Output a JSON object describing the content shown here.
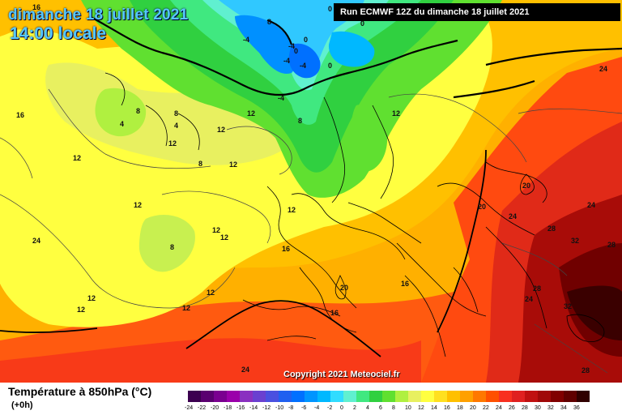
{
  "header": {
    "date": "dimanche 18 juillet 2021",
    "time": "14:00 locale",
    "run": "Run ECMWF 12Z du dimanche 18 juillet 2021"
  },
  "copyright": "Copyright 2021 Meteociel.fr",
  "legend": {
    "title": "Température à 850hPa (°C)",
    "subtitle": "(+0h)",
    "ticks": [
      "-24",
      "-22",
      "-20",
      "-18",
      "-16",
      "-14",
      "-12",
      "-10",
      "-8",
      "-6",
      "-4",
      "-2",
      "0",
      "2",
      "4",
      "6",
      "8",
      "10",
      "12",
      "14",
      "16",
      "18",
      "20",
      "22",
      "24",
      "26",
      "28",
      "30",
      "32",
      "34",
      "36"
    ],
    "colors": [
      "#3c0050",
      "#5a0070",
      "#7a0090",
      "#9a00aa",
      "#8a30c0",
      "#6a40d0",
      "#4a50e0",
      "#2060f0",
      "#0070ff",
      "#0095ff",
      "#00b8ff",
      "#30dcff",
      "#60f0d0",
      "#40e880",
      "#30d040",
      "#60e030",
      "#b0f040",
      "#e8f060",
      "#ffff40",
      "#ffe020",
      "#ffc000",
      "#ffa000",
      "#ff7800",
      "#ff5000",
      "#f83020",
      "#e02020",
      "#c01010",
      "#a00808",
      "#800000",
      "#600000",
      "#300000"
    ]
  },
  "isotherm_labels": [
    {
      "t": "0"
    },
    {
      "t": "0"
    },
    {
      "t": "0"
    },
    {
      "t": "0"
    },
    {
      "t": "-4"
    },
    {
      "t": "-4"
    },
    {
      "t": "-4"
    },
    {
      "t": "-4"
    },
    {
      "t": "-4"
    },
    {
      "t": "0"
    },
    {
      "t": "4"
    },
    {
      "t": "4"
    },
    {
      "t": "8"
    },
    {
      "t": "8"
    },
    {
      "t": "8"
    },
    {
      "t": "8"
    },
    {
      "t": "8"
    },
    {
      "t": "8"
    },
    {
      "t": "12"
    },
    {
      "t": "12"
    },
    {
      "t": "12"
    },
    {
      "t": "12"
    },
    {
      "t": "12"
    },
    {
      "t": "12"
    },
    {
      "t": "12"
    },
    {
      "t": "12"
    },
    {
      "t": "12"
    },
    {
      "t": "12"
    },
    {
      "t": "12"
    },
    {
      "t": "12"
    },
    {
      "t": "12"
    },
    {
      "t": "12"
    },
    {
      "t": "16"
    },
    {
      "t": "16"
    },
    {
      "t": "16"
    },
    {
      "t": "16"
    },
    {
      "t": "16"
    },
    {
      "t": "20"
    },
    {
      "t": "20"
    },
    {
      "t": "20"
    },
    {
      "t": "24"
    },
    {
      "t": "24"
    },
    {
      "t": "24"
    },
    {
      "t": "24"
    },
    {
      "t": "24"
    },
    {
      "t": "24"
    },
    {
      "t": "28"
    },
    {
      "t": "28"
    },
    {
      "t": "28"
    },
    {
      "t": "28"
    },
    {
      "t": "32"
    },
    {
      "t": "32"
    }
  ]
}
